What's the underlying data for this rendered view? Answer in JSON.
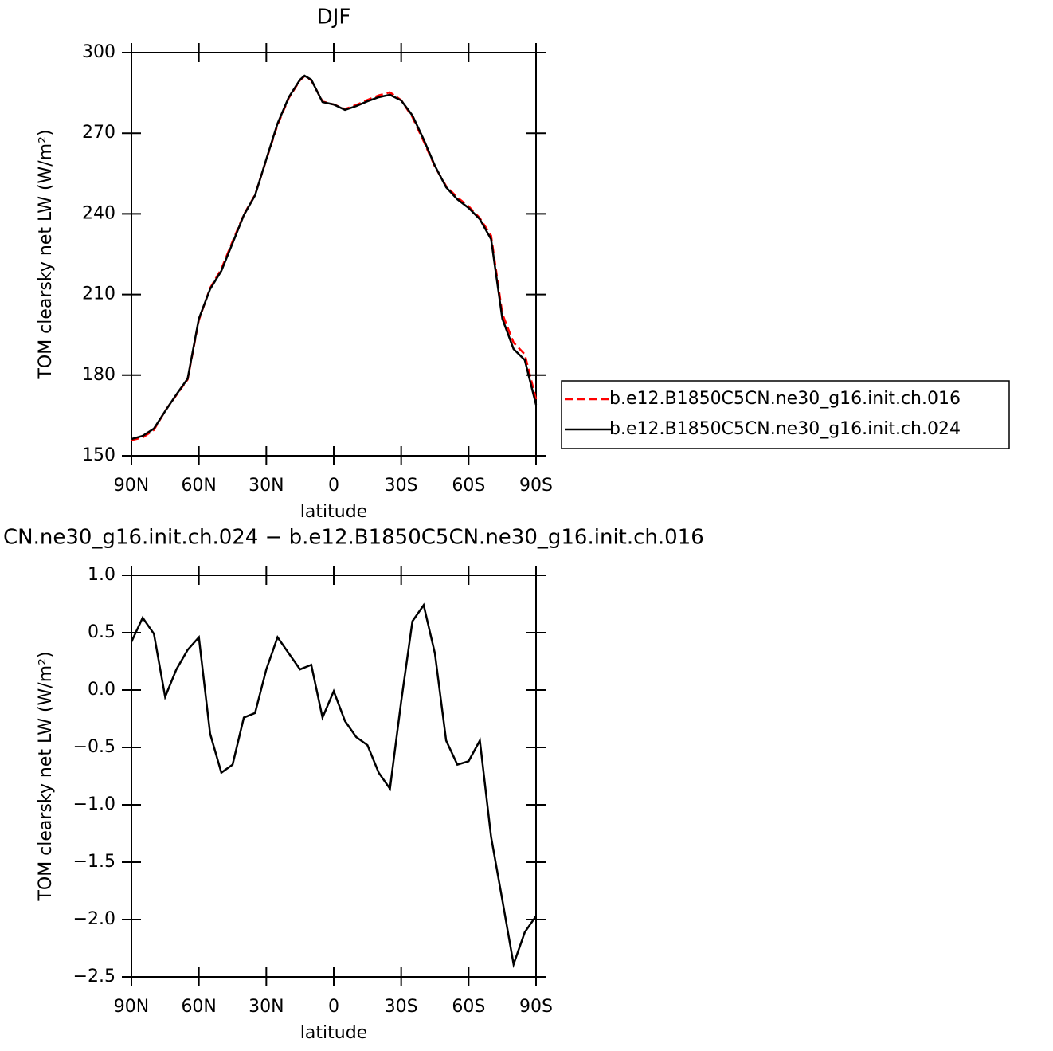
{
  "chart_data": [
    {
      "type": "line",
      "title": "DJF",
      "x_label": "latitude",
      "y_label": "TOM clearsky net LW (W/m²)",
      "x": [
        90,
        85,
        80,
        75,
        70,
        65,
        60,
        55,
        50,
        45,
        40,
        35,
        30,
        25,
        20,
        15,
        13,
        10,
        5,
        0,
        -5,
        -10,
        -15,
        -20,
        -25,
        -30,
        -35,
        -40,
        -45,
        -50,
        -55,
        -60,
        -65,
        -70,
        -75,
        -80,
        -85,
        -90
      ],
      "xlim": [
        90,
        -90
      ],
      "xticks": [
        {
          "value": 90,
          "label": "90N"
        },
        {
          "value": 60,
          "label": "60N"
        },
        {
          "value": 30,
          "label": "30N"
        },
        0,
        {
          "value": -30,
          "label": "30S"
        },
        {
          "value": -60,
          "label": "60S"
        },
        {
          "value": -90,
          "label": "90S"
        }
      ],
      "ylim": [
        150,
        300
      ],
      "yticks": [
        150,
        180,
        210,
        240,
        270,
        300
      ],
      "legend": "outside right",
      "series": [
        {
          "name": "b.e12.B1850C5CN.ne30_g16.init.ch.016",
          "color": "#ff0000",
          "dash": true,
          "values": [
            155.8,
            156.8,
            159.6,
            166.7,
            172.6,
            178.4,
            200.5,
            212.4,
            219.5,
            229.8,
            239.7,
            247.1,
            260.1,
            273.1,
            283.1,
            289.7,
            291.2,
            289.7,
            281.8,
            280.7,
            279.0,
            280.5,
            282.4,
            284.1,
            285.2,
            282.3,
            276.0,
            267.0,
            257.6,
            250.3,
            246.1,
            242.8,
            238.4,
            231.9,
            202.8,
            192.1,
            187.7,
            171.0
          ]
        },
        {
          "name": "b.e12.B1850C5CN.ne30_g16.init.ch.024",
          "color": "#000000",
          "dash": false,
          "values": [
            156.2,
            157.4,
            160.1,
            166.6,
            172.8,
            178.7,
            201.0,
            212.0,
            218.8,
            229.1,
            239.5,
            246.9,
            260.3,
            273.6,
            283.4,
            289.9,
            291.4,
            289.9,
            281.6,
            280.7,
            278.7,
            280.1,
            281.9,
            283.4,
            284.3,
            282.2,
            276.6,
            267.7,
            257.9,
            249.9,
            245.4,
            242.2,
            238.0,
            230.6,
            201.0,
            189.7,
            185.6,
            169.0
          ]
        }
      ]
    },
    {
      "type": "line",
      "title": "CN.ne30_g16.init.ch.024 − b.e12.B1850C5CN.ne30_g16.init.ch.016",
      "x_label": "latitude",
      "y_label": "TOM clearsky net LW (W/m²)",
      "x": [
        90,
        85,
        80,
        75,
        70,
        65,
        60,
        55,
        50,
        45,
        40,
        35,
        30,
        25,
        20,
        15,
        10,
        5,
        0,
        -5,
        -10,
        -15,
        -20,
        -25,
        -30,
        -35,
        -40,
        -45,
        -50,
        -55,
        -60,
        -65,
        -70,
        -75,
        -80,
        -85,
        -90
      ],
      "xlim": [
        90,
        -90
      ],
      "xticks": [
        {
          "value": 90,
          "label": "90N"
        },
        {
          "value": 60,
          "label": "60N"
        },
        {
          "value": 30,
          "label": "30N"
        },
        0,
        {
          "value": -30,
          "label": "30S"
        },
        {
          "value": -60,
          "label": "60S"
        },
        {
          "value": -90,
          "label": "90S"
        }
      ],
      "ylim": [
        -2.5,
        1.0
      ],
      "yticks": [
        {
          "value": -2.5,
          "label": "−2.5"
        },
        {
          "value": -2.0,
          "label": "−2.0"
        },
        {
          "value": -1.5,
          "label": "−1.5"
        },
        {
          "value": -1.0,
          "label": "−1.0"
        },
        {
          "value": -0.5,
          "label": "−0.5"
        },
        {
          "value": 0,
          "label": "0.0"
        },
        0.5,
        {
          "value": 1.0,
          "label": "1.0"
        }
      ],
      "color": "#000000",
      "values": [
        0.42,
        0.63,
        0.49,
        -0.06,
        0.18,
        0.35,
        0.46,
        -0.38,
        -0.72,
        -0.65,
        -0.24,
        -0.2,
        0.18,
        0.46,
        0.32,
        0.18,
        0.22,
        -0.24,
        -0.01,
        -0.27,
        -0.41,
        -0.48,
        -0.72,
        -0.86,
        -0.1,
        0.6,
        0.74,
        0.32,
        -0.44,
        -0.65,
        -0.62,
        -0.44,
        -1.28,
        -1.83,
        -2.39,
        -2.11,
        -1.97
      ]
    }
  ]
}
